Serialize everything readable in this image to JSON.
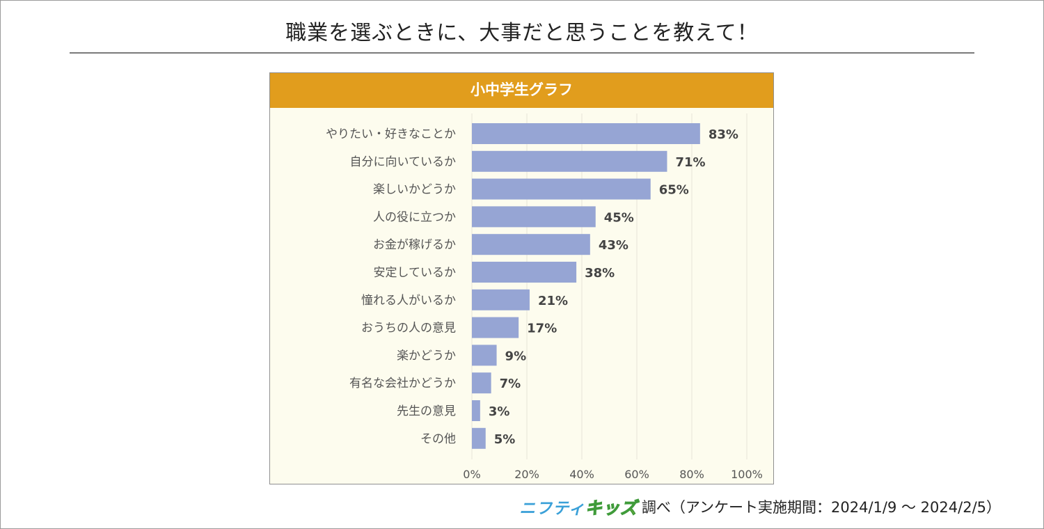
{
  "page": {
    "title": "職業を選ぶときに、大事だと思うことを教えて！"
  },
  "panel": {
    "header": "小中学生グラフ"
  },
  "footer": {
    "logo_part1": "ニフティ",
    "logo_part2": "キッズ",
    "source_text": "調べ（アンケート実施期間：2024/1/9 ～ 2024/2/5）"
  },
  "colors": {
    "bar": "#96a5d4",
    "header": "#e19d1d",
    "panel_bg": "#fdfcee",
    "grid": "#e6e5d8",
    "label_text": "#555555",
    "value_text": "#444444"
  },
  "chart_data": {
    "type": "bar",
    "orientation": "horizontal",
    "title": "小中学生グラフ",
    "categories": [
      "やりたい・好きなことか",
      "自分に向いているか",
      "楽しいかどうか",
      "人の役に立つか",
      "お金が稼げるか",
      "安定しているか",
      "憧れる人がいるか",
      "おうちの人の意見",
      "楽かどうか",
      "有名な会社かどうか",
      "先生の意見",
      "その他"
    ],
    "values": [
      83,
      71,
      65,
      45,
      43,
      38,
      21,
      17,
      9,
      7,
      3,
      5
    ],
    "value_labels": [
      "83%",
      "71%",
      "65%",
      "45%",
      "43%",
      "38%",
      "21%",
      "17%",
      "9%",
      "7%",
      "3%",
      "5%"
    ],
    "xlim": [
      0,
      100
    ],
    "xticks": [
      0,
      20,
      40,
      60,
      80,
      100
    ],
    "xtick_labels": [
      "0%",
      "20%",
      "40%",
      "60%",
      "80%",
      "100%"
    ],
    "grid": true,
    "xlabel": "",
    "ylabel": ""
  }
}
